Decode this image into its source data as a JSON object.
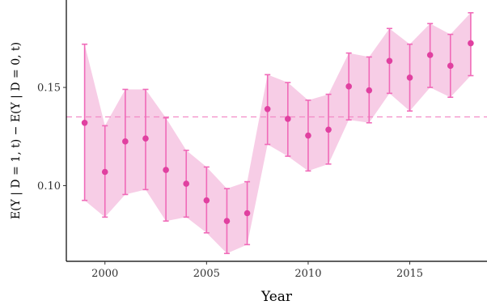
{
  "chart_data": {
    "type": "scatter",
    "xlabel": "Year",
    "ylabel": "E(Y | D = 1, t) − E(Y | D = 0, t)",
    "xlim": [
      1998.1,
      2018.8
    ],
    "ylim": [
      0.0615,
      0.1945
    ],
    "x_ticks": [
      2000,
      2005,
      2010,
      2015
    ],
    "y_ticks": [
      0.1,
      0.15
    ],
    "y_tick_labels": [
      "0.10",
      "0.15"
    ],
    "reference_line": 0.135,
    "grid": false,
    "colors": {
      "point": "#e040a0",
      "errorbar": "#f06ab8",
      "band": "#f7cde6",
      "reference": "#f28cc6",
      "axis": "#000000"
    },
    "points": [
      {
        "x": 1999,
        "y": 0.132,
        "lower": 0.0925,
        "upper": 0.172
      },
      {
        "x": 2000,
        "y": 0.107,
        "lower": 0.084,
        "upper": 0.1305
      },
      {
        "x": 2001,
        "y": 0.1225,
        "lower": 0.0955,
        "upper": 0.149
      },
      {
        "x": 2002,
        "y": 0.124,
        "lower": 0.098,
        "upper": 0.149
      },
      {
        "x": 2003,
        "y": 0.108,
        "lower": 0.082,
        "upper": 0.1345
      },
      {
        "x": 2004,
        "y": 0.101,
        "lower": 0.084,
        "upper": 0.118
      },
      {
        "x": 2005,
        "y": 0.0925,
        "lower": 0.076,
        "upper": 0.1095
      },
      {
        "x": 2006,
        "y": 0.082,
        "lower": 0.0655,
        "upper": 0.0985
      },
      {
        "x": 2007,
        "y": 0.086,
        "lower": 0.07,
        "upper": 0.102
      },
      {
        "x": 2008,
        "y": 0.139,
        "lower": 0.121,
        "upper": 0.1565
      },
      {
        "x": 2009,
        "y": 0.134,
        "lower": 0.115,
        "upper": 0.1525
      },
      {
        "x": 2010,
        "y": 0.1255,
        "lower": 0.1075,
        "upper": 0.1435
      },
      {
        "x": 2011,
        "y": 0.1285,
        "lower": 0.111,
        "upper": 0.1465
      },
      {
        "x": 2012,
        "y": 0.1505,
        "lower": 0.1335,
        "upper": 0.1675
      },
      {
        "x": 2013,
        "y": 0.1485,
        "lower": 0.132,
        "upper": 0.1655
      },
      {
        "x": 2014,
        "y": 0.1635,
        "lower": 0.147,
        "upper": 0.18
      },
      {
        "x": 2015,
        "y": 0.155,
        "lower": 0.138,
        "upper": 0.172
      },
      {
        "x": 2016,
        "y": 0.1665,
        "lower": 0.15,
        "upper": 0.1825
      },
      {
        "x": 2017,
        "y": 0.161,
        "lower": 0.145,
        "upper": 0.177
      },
      {
        "x": 2018,
        "y": 0.1725,
        "lower": 0.156,
        "upper": 0.188
      }
    ]
  }
}
